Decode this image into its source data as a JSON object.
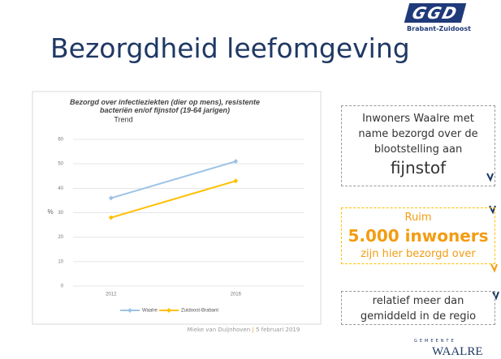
{
  "header": {
    "title": "Bezorgdheid leefomgeving",
    "logo": "GGD",
    "logo_sub": "Brabant-Zuidoost"
  },
  "chart_data": {
    "type": "line",
    "title": "Bezorgd over infectieziekten (dier op mens), resistente bacteriën en/of fijnstof (19-64 jarigen)",
    "subtitle": "Trend",
    "y_label": "%",
    "categories": [
      "2012",
      "2016"
    ],
    "series": [
      {
        "name": "Waalre",
        "color": "#9dc3e6",
        "values": [
          36,
          51
        ]
      },
      {
        "name": "Zuidoost-Brabant",
        "color": "#ffc000",
        "values": [
          28,
          43
        ]
      }
    ],
    "ylim": [
      0,
      60
    ],
    "yticks": [
      0,
      10,
      20,
      30,
      40,
      50,
      60
    ],
    "grid": true,
    "legend": "bottom"
  },
  "boxes": [
    {
      "lines": [
        "Inwoners Waalre met",
        "name bezorgd over de",
        "blootstelling aan"
      ],
      "highlight": "fijnstof"
    },
    {
      "lines": [
        "Ruim"
      ],
      "highlight": "5.000 inwoners",
      "after": [
        "zijn hier bezorgd over"
      ]
    },
    {
      "lines": [
        "relatief meer dan",
        "gemiddeld in de regio"
      ]
    }
  ],
  "footer": {
    "author": "Mieke van Duijnhoven",
    "separator": "|",
    "date": "5 februari 2019",
    "municipality_small": "GEMEENTE",
    "municipality": "WAALRE"
  }
}
